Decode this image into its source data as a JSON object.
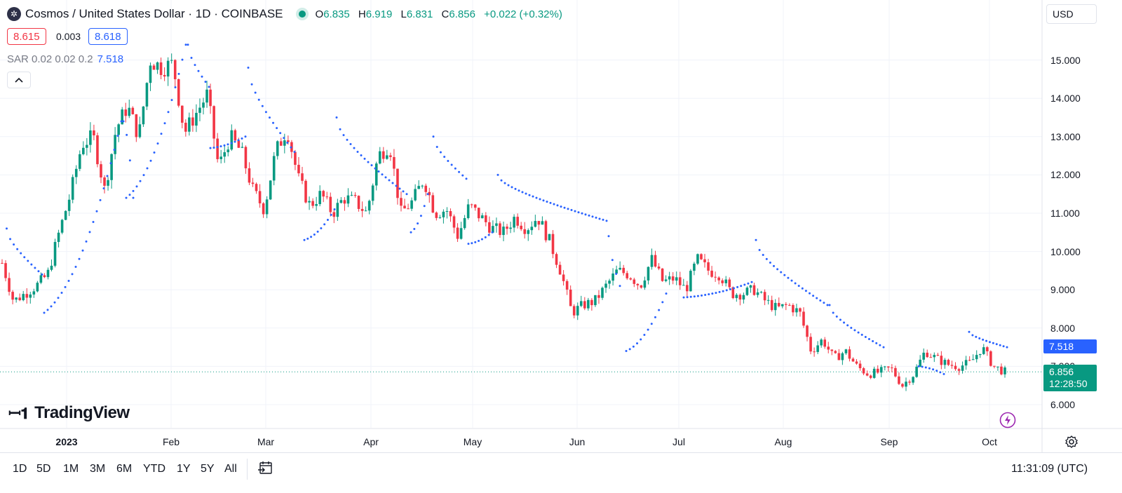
{
  "header": {
    "symbol_title": "Cosmos / United States Dollar · 1D · COINBASE",
    "open_label": "O",
    "open": "6.835",
    "high_label": "H",
    "high": "6.919",
    "low_label": "L",
    "low": "6.831",
    "close_label": "C",
    "close": "6.856",
    "change": "+0.022 (+0.32%)"
  },
  "quote": {
    "bid": "8.615",
    "spread": "0.003",
    "ask": "8.618"
  },
  "indicator": {
    "name": "SAR 0.02 0.02 0.2",
    "value": "7.518"
  },
  "currency": "USD",
  "price_tags": {
    "sar": "7.518",
    "last": "6.856",
    "countdown": "12:28:50"
  },
  "branding": "TradingView",
  "range_buttons": [
    "1D",
    "5D",
    "1M",
    "3M",
    "6M",
    "YTD",
    "1Y",
    "5Y",
    "All"
  ],
  "clock": "11:31:09 (UTC)",
  "colors": {
    "up": "#089981",
    "down": "#f23645",
    "sar": "#2962ff",
    "grid": "#f0f3fa"
  },
  "icons": [
    "cosmos-logo-icon",
    "chevron-up-icon",
    "goto-date-icon",
    "gear-icon",
    "lightning-icon"
  ],
  "chart_data": {
    "type": "candlestick",
    "yaxis": {
      "ticks": [
        "6.000",
        "7.000",
        "8.000",
        "9.000",
        "10.000",
        "11.000",
        "12.000",
        "13.000",
        "14.000",
        "15.000"
      ],
      "range": [
        5.0,
        16.0
      ]
    },
    "xaxis": {
      "labels": [
        "2023",
        "Feb",
        "Mar",
        "Apr",
        "May",
        "Jun",
        "Jul",
        "Aug",
        "Sep",
        "Oct"
      ]
    },
    "last_price": 6.856,
    "close_path": [
      9.7,
      8.7,
      8.9,
      9.1,
      9.4,
      10.5,
      11.5,
      12.8,
      13.0,
      11.6,
      13.2,
      13.8,
      13.0,
      15.0,
      14.8,
      14.9,
      13.1,
      13.6,
      14.1,
      12.2,
      13.0,
      12.6,
      11.6,
      11.1,
      12.6,
      13.2,
      11.9,
      11.2,
      11.5,
      11.0,
      11.4,
      11.3,
      11.0,
      12.5,
      12.8,
      11.0,
      11.3,
      11.9,
      11.0,
      11.1,
      10.4,
      11.2,
      10.9,
      10.6,
      10.5,
      10.9,
      10.6,
      10.9,
      10.3,
      9.5,
      8.4,
      8.6,
      8.7,
      9.1,
      9.5,
      9.4,
      9.1,
      9.8,
      9.2,
      9.3,
      9.0,
      9.8,
      9.5,
      9.4,
      8.9,
      8.9,
      9.0,
      8.7,
      8.5,
      8.6,
      8.4,
      7.4,
      7.7,
      7.2,
      7.4,
      7.0,
      6.8,
      6.85,
      6.95,
      6.5,
      6.8,
      7.4,
      7.2,
      7.05,
      7.0,
      7.1,
      7.5,
      7.0,
      6.856
    ],
    "sar_segments": [
      {
        "from": [
          9.5,
          10.6
        ],
        "to": [
          60,
          9.4
        ],
        "side": "above"
      },
      {
        "from": [
          63,
          8.4
        ],
        "to": [
          173,
          13.4
        ],
        "side": "below"
      },
      {
        "from": [
          176,
          13.4
        ],
        "to": [
          190,
          11.4
        ],
        "side": "below"
      },
      {
        "from": [
          180,
          11.4
        ],
        "to": [
          265,
          15.4
        ],
        "side": "below"
      },
      {
        "from": [
          268,
          15.4
        ],
        "to": [
          298,
          14.3
        ],
        "side": "above"
      },
      {
        "from": [
          300,
          12.7
        ],
        "to": [
          350,
          13.0
        ],
        "side": "below"
      },
      {
        "from": [
          354,
          14.8
        ],
        "to": [
          420,
          12.6
        ],
        "side": "above"
      },
      {
        "from": [
          434,
          10.3
        ],
        "to": [
          477,
          11.1
        ],
        "side": "below"
      },
      {
        "from": [
          480,
          13.5
        ],
        "to": [
          580,
          11.5
        ],
        "side": "above"
      },
      {
        "from": [
          586,
          10.5
        ],
        "to": [
          610,
          11.5
        ],
        "side": "below"
      },
      {
        "from": [
          618,
          13.0
        ],
        "to": [
          665,
          11.9
        ],
        "side": "above"
      },
      {
        "from": [
          668,
          10.2
        ],
        "to": [
          702,
          10.5
        ],
        "side": "below"
      },
      {
        "from": [
          710,
          12.0
        ],
        "to": [
          865,
          10.8
        ],
        "side": "above"
      },
      {
        "from": [
          868,
          10.4
        ],
        "to": [
          884,
          9.1
        ],
        "side": "above"
      },
      {
        "from": [
          893,
          7.4
        ],
        "to": [
          950,
          8.9
        ],
        "side": "below"
      },
      {
        "from": [
          975,
          8.8
        ],
        "to": [
          1072,
          9.2
        ],
        "side": "below"
      },
      {
        "from": [
          1078,
          10.3
        ],
        "to": [
          1180,
          8.6
        ],
        "side": "above"
      },
      {
        "from": [
          1183,
          8.6
        ],
        "to": [
          1260,
          7.5
        ],
        "side": "above"
      },
      {
        "from": [
          1310,
          7.0
        ],
        "to": [
          1346,
          6.8
        ],
        "side": "below"
      },
      {
        "from": [
          1382,
          7.9
        ],
        "to": [
          1436,
          7.5
        ],
        "side": "above"
      }
    ]
  }
}
